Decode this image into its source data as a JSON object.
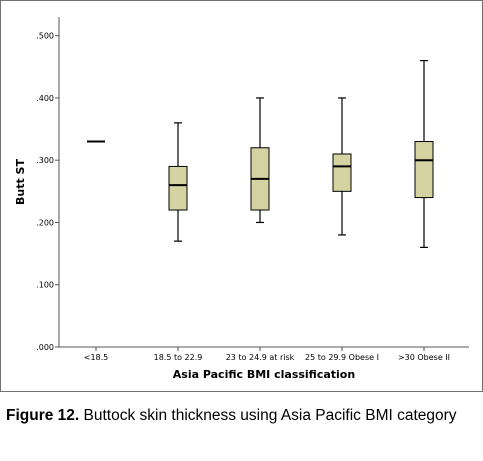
{
  "chart_data": {
    "type": "boxplot",
    "xlabel": "Asia Pacific BMI classification",
    "ylabel": "Butt ST",
    "ylim": [
      0,
      0.53
    ],
    "yticks": [
      0,
      0.1,
      0.2,
      0.3,
      0.4,
      0.5
    ],
    "ytick_labels": [
      ".000",
      ".100",
      ".200",
      ".300",
      ".400",
      ".500"
    ],
    "categories": [
      "<18.5",
      "18.5 to 22.9",
      "23 to 24.9 at risk",
      "25 to 29.9 Obese I",
      ">30 Obese II"
    ],
    "boxes": [
      {
        "min": 0.33,
        "q1": 0.33,
        "median": 0.33,
        "q3": 0.33,
        "max": 0.33
      },
      {
        "min": 0.17,
        "q1": 0.22,
        "median": 0.26,
        "q3": 0.29,
        "max": 0.36
      },
      {
        "min": 0.2,
        "q1": 0.22,
        "median": 0.27,
        "q3": 0.32,
        "max": 0.4
      },
      {
        "min": 0.18,
        "q1": 0.25,
        "median": 0.29,
        "q3": 0.31,
        "max": 0.4
      },
      {
        "min": 0.16,
        "q1": 0.24,
        "median": 0.3,
        "q3": 0.33,
        "max": 0.46
      }
    ],
    "grid": false,
    "colors": {
      "box_fill": "#d6d3a3",
      "stroke": "#000000",
      "axis": "#555555"
    }
  },
  "caption": {
    "label": "Figure 12.",
    "text": " Buttock skin thickness using Asia Pacific BMI category"
  }
}
